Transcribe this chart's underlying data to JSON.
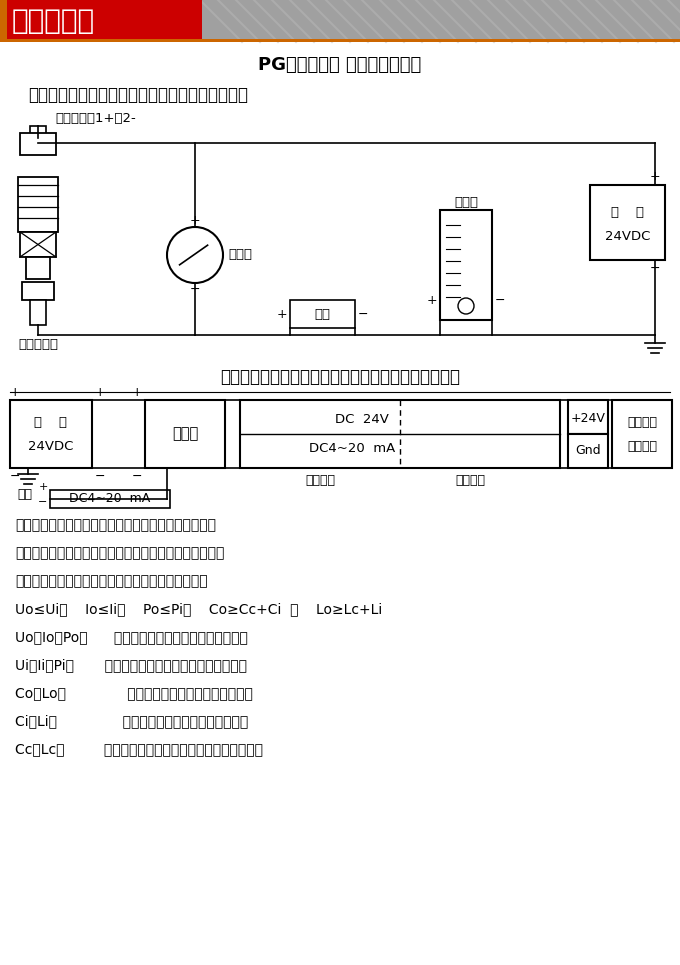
{
  "title_banner": "安装示意图",
  "main_title": "PG压力变送器 现场连接示意图",
  "section1_title": "一、非本安防爆型压力变送器可以用稳压电源供电",
  "section2_title": "二、本安防爆型压力变送建议使用安全栅供电、见上图",
  "label_hesiman": "赫斯曼接头1+、2-",
  "label_ammeter": "电流表",
  "label_load": "负载",
  "label_indicator": "指示仪",
  "label_transmitter": "压力变送器",
  "label_barrier": "安全栅",
  "label_dc24v": "DC  24V",
  "label_dc4_20": "DC4~20  mA",
  "label_safe_zone": "安全场所",
  "label_danger_zone": "危险场所",
  "label_plus24v": "+24V",
  "label_gnd": "Gnd",
  "label_intrinsic1": "本安型压",
  "label_intrinsic2": "力变送器",
  "label_output": "输出",
  "label_output_val": "DC4~20  mA",
  "text_lines": [
    "安全栅须取得防爆合格证，使用时应按其说明书的要求",
    "进行、安全栅防爆标志必须不低于压力变送器防爆标志。",
    "所配用安全栅参数必须符合本安系统参数匹配原则：",
    "Uo≤Ui，    Io≤Ii，    Po≤Pi，    Co≥Cc+Ci  和    Lo≥Lc+Li",
    "Uo、Io、Po：      安全栅的最大输出电压、电流和功率",
    "Ui、Ii、Pi：       压力变送器最大输入电压、电流和功率",
    "Co、Lo：              安全栅允许的最大外部电容和电感",
    "Ci、Li：               压力变送器的最大外部电容和电感",
    "Cc、Lc：         两者之间连接电缆允许总的分布电容和电感"
  ],
  "bg_color": "#ffffff",
  "line_color": "#000000",
  "banner_gray": "#a0a0a0",
  "banner_orange": "#cc6600",
  "banner_red": "#cc0000"
}
